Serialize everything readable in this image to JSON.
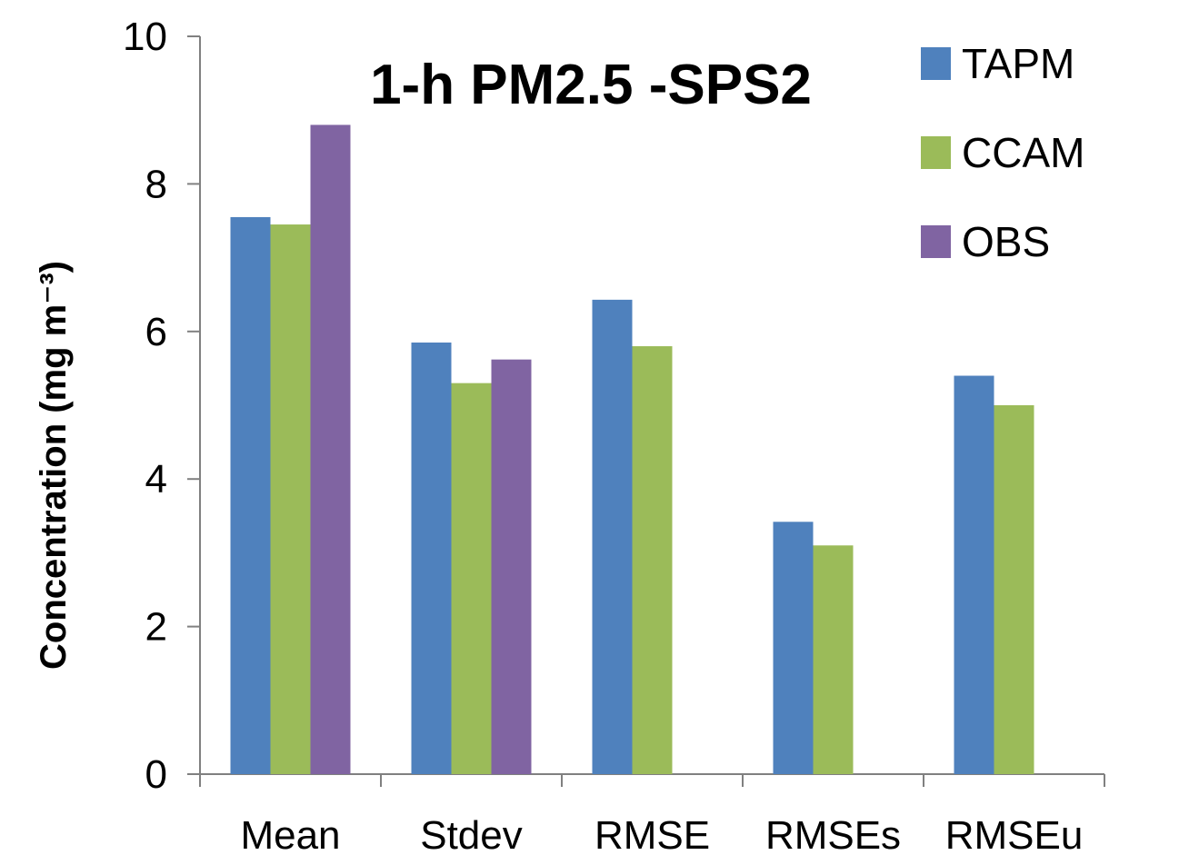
{
  "chart_data": {
    "type": "bar",
    "title": "1-h PM2.5 -SPS2",
    "xlabel": "",
    "ylabel": "Concentration (mg m⁻³)",
    "ylim": [
      0,
      10
    ],
    "yticks": [
      0,
      2,
      4,
      6,
      8,
      10
    ],
    "ytick_labels": [
      "0",
      "2",
      "4",
      "6",
      "8",
      "10"
    ],
    "categories": [
      "Mean",
      "Stdev",
      "RMSE",
      "RMSEs",
      "RMSEu"
    ],
    "series": [
      {
        "name": "TAPM",
        "color": "#4f81bd",
        "values": [
          7.55,
          5.85,
          6.43,
          3.42,
          5.4
        ]
      },
      {
        "name": "CCAM",
        "color": "#9bbb59",
        "values": [
          7.45,
          5.3,
          5.8,
          3.1,
          5.0
        ]
      },
      {
        "name": "OBS",
        "color": "#8064a2",
        "values": [
          8.8,
          5.62,
          null,
          null,
          null
        ]
      }
    ],
    "legend_position": "top-right",
    "grid": false
  }
}
